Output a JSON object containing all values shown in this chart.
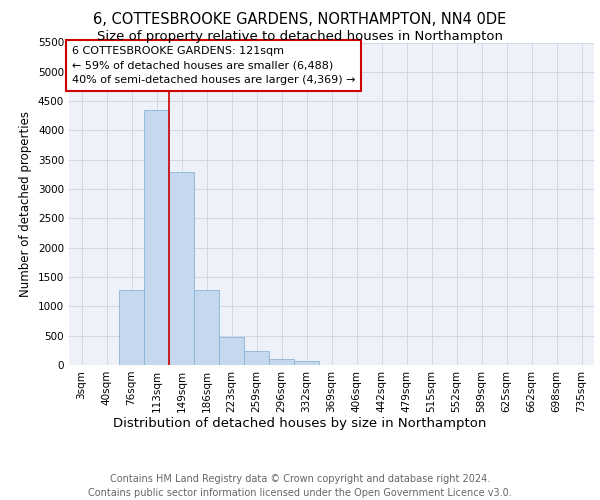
{
  "title": "6, COTTESBROOKE GARDENS, NORTHAMPTON, NN4 0DE",
  "subtitle": "Size of property relative to detached houses in Northampton",
  "xlabel": "Distribution of detached houses by size in Northampton",
  "ylabel": "Number of detached properties",
  "bin_labels": [
    "3sqm",
    "40sqm",
    "76sqm",
    "113sqm",
    "149sqm",
    "186sqm",
    "223sqm",
    "259sqm",
    "296sqm",
    "332sqm",
    "369sqm",
    "406sqm",
    "442sqm",
    "479sqm",
    "515sqm",
    "552sqm",
    "589sqm",
    "625sqm",
    "662sqm",
    "698sqm",
    "735sqm"
  ],
  "bar_values": [
    0,
    0,
    1280,
    4350,
    3300,
    1280,
    480,
    240,
    110,
    60,
    0,
    0,
    0,
    0,
    0,
    0,
    0,
    0,
    0,
    0,
    0
  ],
  "bar_color": "#c5d8ee",
  "bar_edge_color": "#8ab4d8",
  "grid_color": "#d0d8e8",
  "background_color": "#eef2f8",
  "red_line_x": 3.5,
  "annotation_text": "6 COTTESBROOKE GARDENS: 121sqm\n← 59% of detached houses are smaller (6,488)\n40% of semi-detached houses are larger (4,369) →",
  "annotation_box_color": "#ffffff",
  "annotation_box_edge": "#cc0000",
  "vline_color": "#cc0000",
  "ylim": [
    0,
    5500
  ],
  "yticks": [
    0,
    500,
    1000,
    1500,
    2000,
    2500,
    3000,
    3500,
    4000,
    4500,
    5000,
    5500
  ],
  "footer": "Contains HM Land Registry data © Crown copyright and database right 2024.\nContains public sector information licensed under the Open Government Licence v3.0.",
  "title_fontsize": 10.5,
  "subtitle_fontsize": 9.5,
  "xlabel_fontsize": 9.5,
  "ylabel_fontsize": 8.5,
  "tick_fontsize": 7.5,
  "annotation_fontsize": 8.0,
  "footer_fontsize": 7.0
}
